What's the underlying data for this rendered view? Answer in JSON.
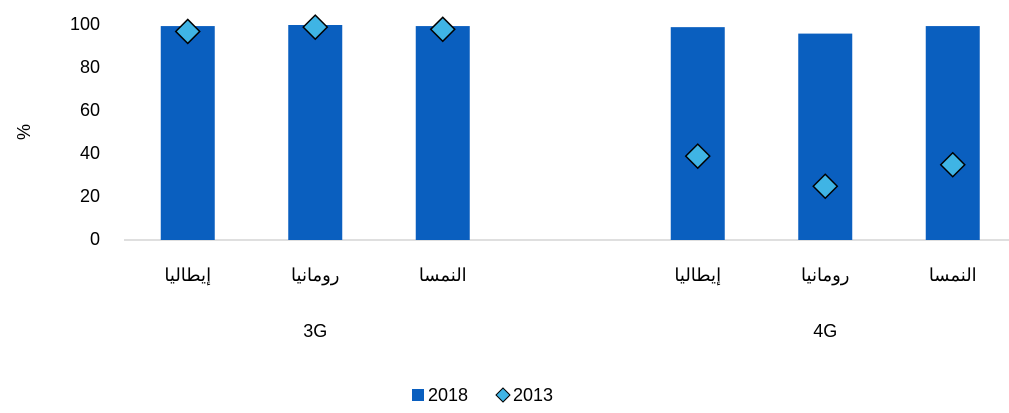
{
  "chart_data": {
    "type": "bar",
    "y_label": "%",
    "categories": [
      "إيطاليا",
      "رومانيا",
      "النمسا",
      null,
      "إيطاليا",
      "رومانيا",
      "النمسا"
    ],
    "groups": [
      "3G",
      "4G"
    ],
    "series": [
      {
        "name": "2018",
        "type": "bar",
        "color": "#0a5fbf",
        "values": [
          99.5,
          100,
          99.5,
          null,
          99,
          96,
          99.5
        ]
      },
      {
        "name": "2013",
        "type": "diamond",
        "color": "#3fb4e5",
        "values": [
          97,
          99,
          98,
          null,
          39,
          25,
          35
        ]
      }
    ],
    "ylim": [
      0,
      100
    ],
    "yticks": [
      0,
      20,
      40,
      60,
      80,
      100
    ],
    "grid": false
  }
}
